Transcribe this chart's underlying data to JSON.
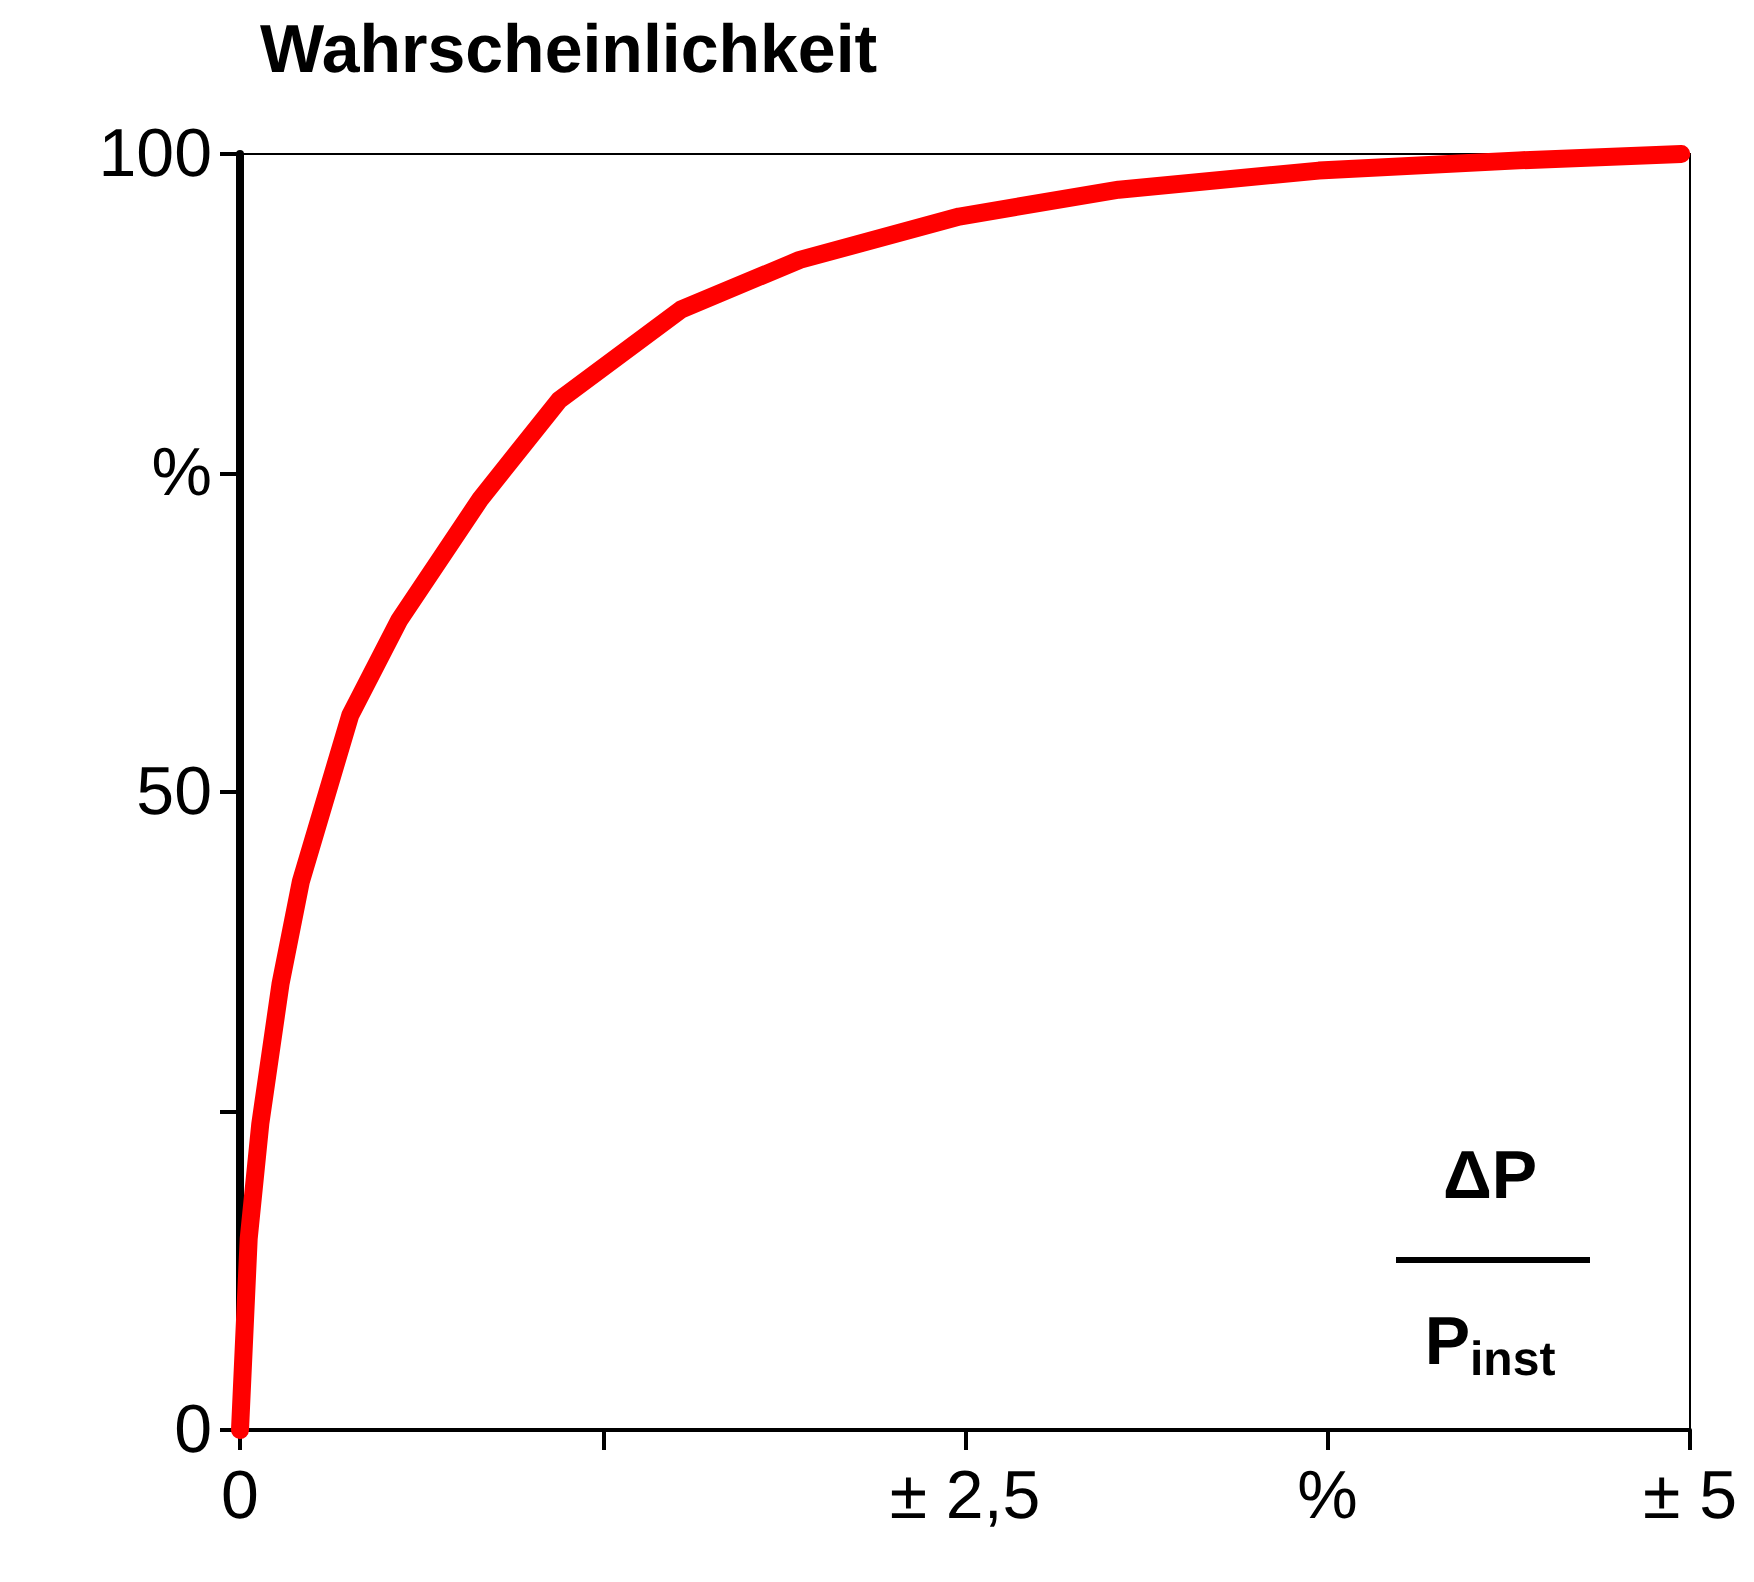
{
  "chart_data": {
    "type": "line",
    "title": "Wahrscheinlichkeit",
    "xlabel": "ΔP\nP$_{inst}$",
    "x": [
      0,
      0.03,
      0.07,
      0.14,
      0.21,
      0.38,
      0.55,
      0.83,
      1.1,
      1.52,
      1.93,
      2.48,
      3.03,
      3.72,
      4.41,
      4.97
    ],
    "series": [
      {
        "color": "#ff0000",
        "values": [
          0,
          15,
          24,
          35,
          43,
          56,
          63.5,
          73,
          80.7,
          87.8,
          91.7,
          95.1,
          97.2,
          98.7,
          99.5,
          100
        ]
      }
    ],
    "xlim": [
      0,
      5
    ],
    "ylim": [
      0,
      100
    ],
    "xticks": [
      0,
      {
        "value": 1.25,
        "label": null
      },
      {
        "value": 2.5,
        "label": "± 2,5"
      },
      {
        "value": 3.75,
        "label": "%"
      },
      {
        "value": 5,
        "label": "± 5"
      }
    ],
    "yticks": [
      0,
      {
        "value": 25,
        "label": null
      },
      50,
      {
        "value": 75,
        "label": "%"
      },
      100
    ],
    "grid": false,
    "line_style": "solid"
  }
}
